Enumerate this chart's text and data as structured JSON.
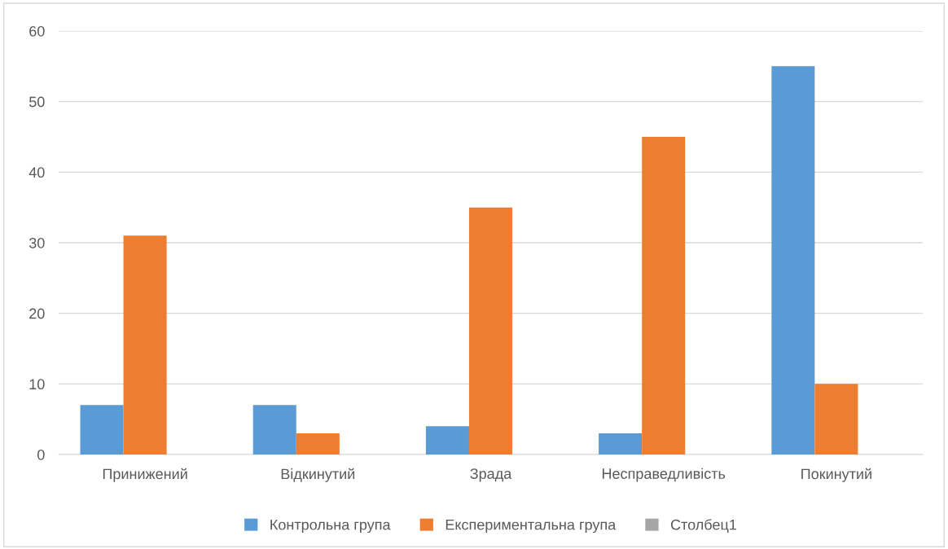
{
  "chart_data": {
    "type": "bar",
    "categories": [
      "Принижений",
      "Відкинутий",
      "Зрада",
      "Несправедливість",
      "Покинутий"
    ],
    "series": [
      {
        "name": "Контрольна група",
        "color": "#5b9bd5",
        "values": [
          7,
          7,
          4,
          3,
          55
        ]
      },
      {
        "name": "Експериментальна група",
        "color": "#ed7d31",
        "values": [
          31,
          3,
          35,
          45,
          10
        ]
      },
      {
        "name": "Столбец1",
        "color": "#a5a5a5",
        "values": [
          null,
          null,
          null,
          null,
          null
        ]
      }
    ],
    "ylim": [
      0,
      60
    ],
    "yticks": [
      0,
      10,
      20,
      30,
      40,
      50,
      60
    ],
    "grid": "y",
    "legend": "bottom"
  }
}
